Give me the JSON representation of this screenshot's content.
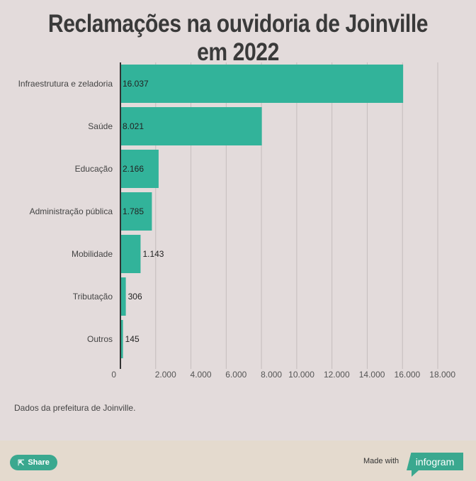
{
  "title": "Reclamações na ouvidoria de Joinville em 2022",
  "source": "Dados da prefeitura de Joinville.",
  "footer": {
    "share_label": "Share",
    "made_with": "Made with",
    "brand": "infogram"
  },
  "colors": {
    "bar": "#32b39a",
    "background": "#e3dbdb"
  },
  "chart_data": {
    "type": "bar",
    "orientation": "horizontal",
    "title": "Reclamações na ouvidoria de Joinville em 2022",
    "categories": [
      "Infraestrutura e zeladoria",
      "Saúde",
      "Educação",
      "Administração pública",
      "Mobilidade",
      "Tributação",
      "Outros"
    ],
    "values": [
      16037,
      8021,
      2166,
      1785,
      1143,
      306,
      145
    ],
    "value_labels": [
      "16.037",
      "8.021",
      "2.166",
      "1.785",
      "1.143",
      "306",
      "145"
    ],
    "xlim": [
      0,
      18000
    ],
    "xticks": [
      "0",
      "2.000",
      "4.000",
      "6.000",
      "8.000",
      "10.000",
      "12.000",
      "14.000",
      "16.000",
      "18.000"
    ],
    "grid": true
  }
}
